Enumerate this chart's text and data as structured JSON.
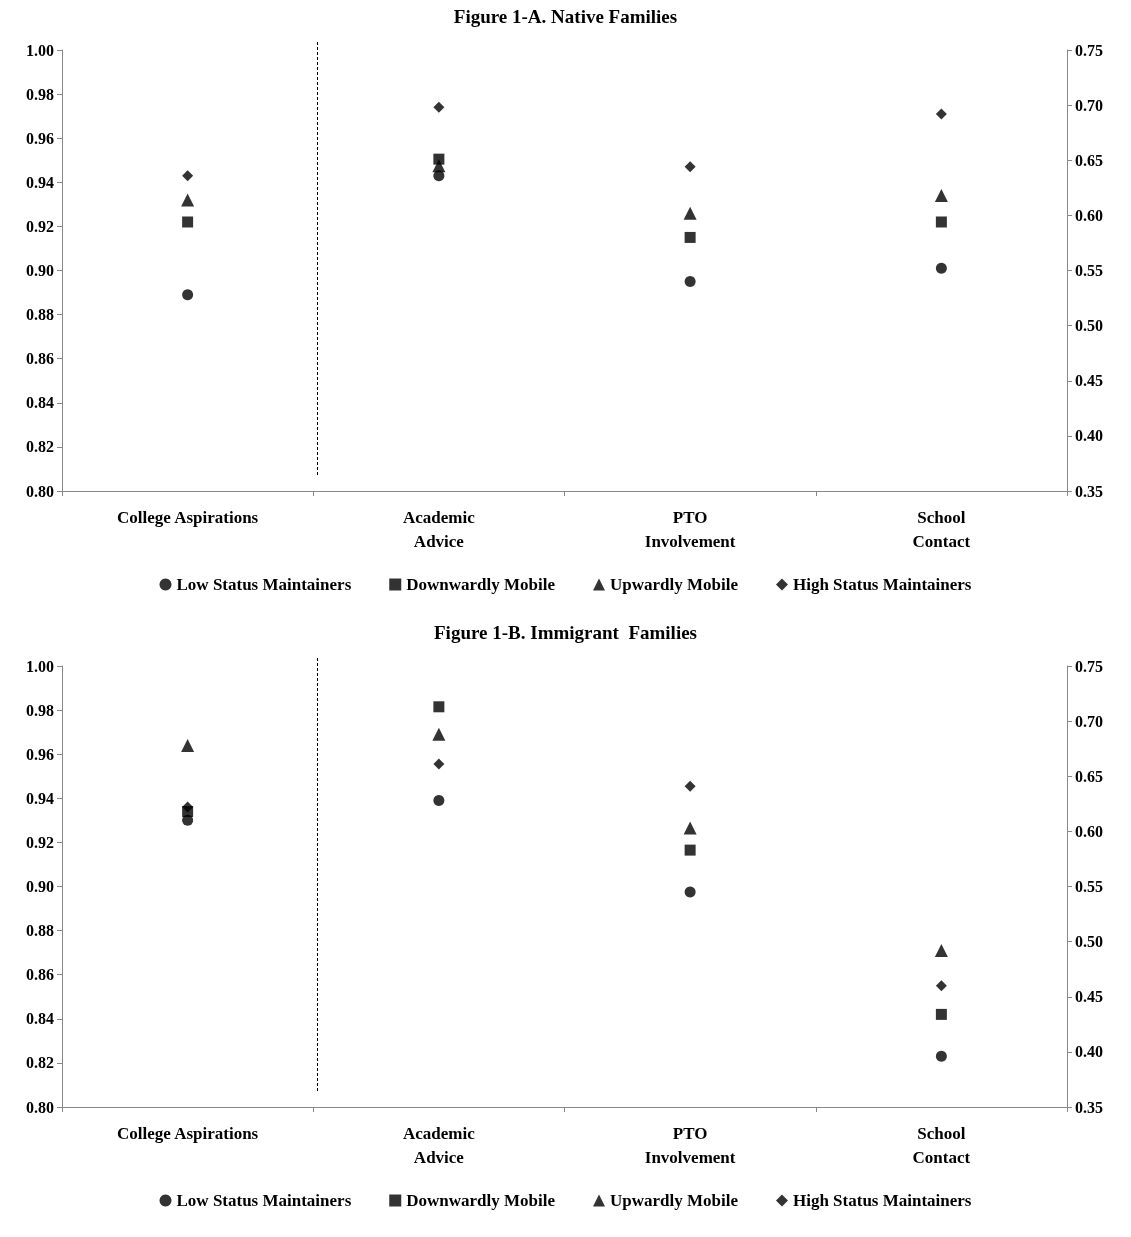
{
  "chart_data": [
    {
      "type": "scatter",
      "title": "Figure 1-A. Native Families",
      "categories": [
        "College Aspirations",
        "Academic Advice",
        "PTO Involvement",
        "School Contact"
      ],
      "ylim": [
        0.8,
        1.0
      ],
      "yticks": [
        {
          "value": 0.8,
          "label": "0.80"
        },
        {
          "value": 0.82,
          "label": "0.82"
        },
        {
          "value": 0.84,
          "label": "0.84"
        },
        {
          "value": 0.86,
          "label": "0.86"
        },
        {
          "value": 0.88,
          "label": "0.88"
        },
        {
          "value": 0.9,
          "label": "0.90"
        },
        {
          "value": 0.92,
          "label": "0.92"
        },
        {
          "value": 0.94,
          "label": "0.94"
        },
        {
          "value": 0.96,
          "label": "0.96"
        },
        {
          "value": 0.98,
          "label": "0.98"
        },
        {
          "value": 1.0,
          "label": "1.00"
        }
      ],
      "y2lim": [
        0.35,
        0.75
      ],
      "y2ticks": [
        {
          "value": 0.35,
          "label": "0.35"
        },
        {
          "value": 0.4,
          "label": "0.40"
        },
        {
          "value": 0.45,
          "label": "0.45"
        },
        {
          "value": 0.5,
          "label": "0.50"
        },
        {
          "value": 0.55,
          "label": "0.55"
        },
        {
          "value": 0.6,
          "label": "0.60"
        },
        {
          "value": 0.65,
          "label": "0.65"
        },
        {
          "value": 0.7,
          "label": "0.70"
        },
        {
          "value": 0.75,
          "label": "0.75"
        }
      ],
      "legend": "bottom",
      "series": [
        {
          "name": "Low Status Maintainers",
          "color": "#000000",
          "marker": "circle",
          "axis": "y",
          "values": [
            0.889,
            null,
            null,
            null
          ]
        },
        {
          "name": "Downwardly Mobile",
          "color": "#000000",
          "marker": "square",
          "axis": "y",
          "values": [
            0.922,
            null,
            null,
            null
          ]
        },
        {
          "name": "Upwardly Mobile",
          "color": "#000000",
          "marker": "triangle",
          "axis": "y",
          "values": [
            0.932,
            null,
            null,
            null
          ]
        },
        {
          "name": "High Status Maintainers",
          "color": "#000000",
          "marker": "diamond",
          "axis": "y",
          "values": [
            0.943,
            null,
            null,
            null
          ]
        },
        {
          "color": "#000000",
          "marker": "circle",
          "axis": "y2",
          "values": [
            null,
            0.636,
            0.54,
            0.552
          ]
        },
        {
          "color": "#000000",
          "marker": "square",
          "axis": "y2",
          "values": [
            null,
            0.651,
            0.58,
            0.594
          ]
        },
        {
          "color": "#000000",
          "marker": "triangle",
          "axis": "y2",
          "values": [
            null,
            0.645,
            0.602,
            0.618
          ]
        },
        {
          "color": "#000000",
          "marker": "diamond",
          "axis": "y2",
          "values": [
            null,
            0.698,
            0.644,
            0.692
          ]
        }
      ]
    },
    {
      "type": "scatter",
      "title": "Figure 1-B. Immigrant  Families",
      "categories": [
        "College Aspirations",
        "Academic Advice",
        "PTO Involvement",
        "School Contact"
      ],
      "ylim": [
        0.8,
        1.0
      ],
      "yticks": [
        {
          "value": 0.8,
          "label": "0.80"
        },
        {
          "value": 0.82,
          "label": "0.82"
        },
        {
          "value": 0.84,
          "label": "0.84"
        },
        {
          "value": 0.86,
          "label": "0.86"
        },
        {
          "value": 0.88,
          "label": "0.88"
        },
        {
          "value": 0.9,
          "label": "0.90"
        },
        {
          "value": 0.92,
          "label": "0.92"
        },
        {
          "value": 0.94,
          "label": "0.94"
        },
        {
          "value": 0.96,
          "label": "0.96"
        },
        {
          "value": 0.98,
          "label": "0.98"
        },
        {
          "value": 1.0,
          "label": "1.00"
        }
      ],
      "y2lim": [
        0.35,
        0.75
      ],
      "y2ticks": [
        {
          "value": 0.35,
          "label": "0.35"
        },
        {
          "value": 0.4,
          "label": "0.40"
        },
        {
          "value": 0.45,
          "label": "0.45"
        },
        {
          "value": 0.5,
          "label": "0.50"
        },
        {
          "value": 0.55,
          "label": "0.55"
        },
        {
          "value": 0.6,
          "label": "0.60"
        },
        {
          "value": 0.65,
          "label": "0.65"
        },
        {
          "value": 0.7,
          "label": "0.70"
        },
        {
          "value": 0.75,
          "label": "0.75"
        }
      ],
      "legend": "bottom",
      "series": [
        {
          "name": "Low Status Maintainers",
          "color": "#000000",
          "marker": "circle",
          "axis": "y",
          "values": [
            0.93,
            null,
            null,
            null
          ]
        },
        {
          "name": "Downwardly Mobile",
          "color": "#000000",
          "marker": "square",
          "axis": "y",
          "values": [
            0.934,
            null,
            null,
            null
          ]
        },
        {
          "name": "Upwardly Mobile",
          "color": "#000000",
          "marker": "triangle",
          "axis": "y",
          "values": [
            0.964,
            null,
            null,
            null
          ]
        },
        {
          "name": "High Status Maintainers",
          "color": "#000000",
          "marker": "diamond",
          "axis": "y",
          "values": [
            0.936,
            null,
            null,
            null
          ]
        },
        {
          "color": "#000000",
          "marker": "circle",
          "axis": "y2",
          "values": [
            null,
            0.628,
            0.545,
            0.396
          ]
        },
        {
          "color": "#000000",
          "marker": "square",
          "axis": "y2",
          "values": [
            null,
            0.713,
            0.583,
            0.434
          ]
        },
        {
          "color": "#000000",
          "marker": "triangle",
          "axis": "y2",
          "values": [
            null,
            0.688,
            0.603,
            0.492
          ]
        },
        {
          "color": "#000000",
          "marker": "diamond",
          "axis": "y2",
          "values": [
            null,
            0.661,
            0.641,
            0.46
          ]
        }
      ]
    }
  ]
}
